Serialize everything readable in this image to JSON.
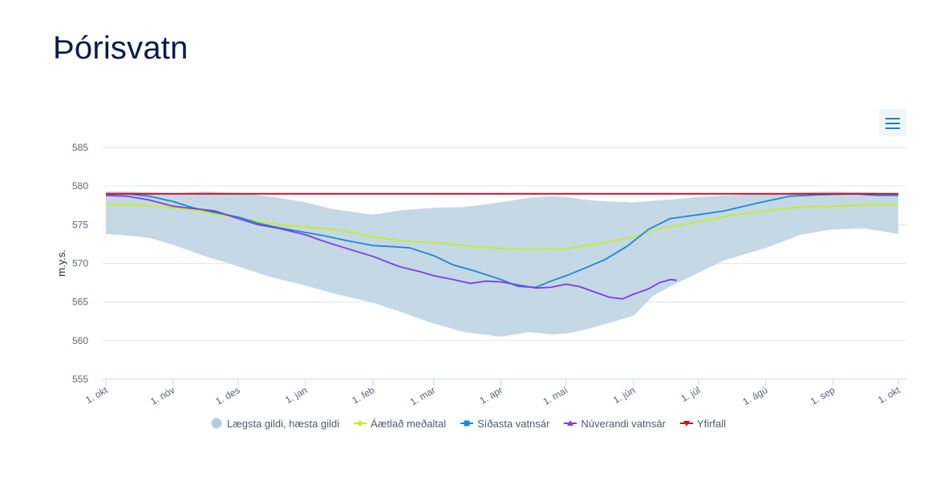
{
  "page": {
    "title": "Þórisvatn"
  },
  "menu": {
    "icon": "hamburger-menu-icon"
  },
  "chart_data": {
    "type": "line",
    "ylabel": "m.y.s.",
    "ylim": [
      555,
      585
    ],
    "yticks": [
      "555",
      "560",
      "565",
      "570",
      "575",
      "580",
      "585"
    ],
    "x_domain": [
      0,
      365
    ],
    "xticks": [
      {
        "label": "1. okt",
        "day": 0
      },
      {
        "label": "1. nóv",
        "day": 31
      },
      {
        "label": "1. des",
        "day": 61
      },
      {
        "label": "1. jan",
        "day": 92
      },
      {
        "label": "1. feb",
        "day": 123
      },
      {
        "label": "1. mar",
        "day": 151
      },
      {
        "label": "1. apr",
        "day": 182
      },
      {
        "label": "1. maí",
        "day": 212
      },
      {
        "label": "1. jún",
        "day": 243
      },
      {
        "label": "1. júl",
        "day": 273
      },
      {
        "label": "1. ágú",
        "day": 304
      },
      {
        "label": "1. sep",
        "day": 335
      },
      {
        "label": "1. okt",
        "day": 365
      }
    ],
    "grid": true,
    "legend_position": "bottom-center",
    "series": [
      {
        "name": "Lægsta gildi, hæsta gildi",
        "kind": "range",
        "color": "#c2d6e4",
        "x": [
          0,
          10,
          20,
          31,
          45,
          61,
          75,
          92,
          105,
          123,
          137,
          151,
          165,
          182,
          195,
          205,
          212,
          222,
          232,
          243,
          252,
          262,
          273,
          285,
          304,
          320,
          335,
          350,
          365
        ],
        "low": [
          573.8,
          573.6,
          573.3,
          572.4,
          571.0,
          569.6,
          568.3,
          567.1,
          566.1,
          564.9,
          563.6,
          562.2,
          561.1,
          560.5,
          561.1,
          560.8,
          560.9,
          561.5,
          562.3,
          563.2,
          565.8,
          567.3,
          568.8,
          570.4,
          572.0,
          573.7,
          574.4,
          574.5,
          573.8
        ],
        "high": [
          579.3,
          579.3,
          579.2,
          579.0,
          579.3,
          579.1,
          578.7,
          577.9,
          577.0,
          576.3,
          576.9,
          577.2,
          577.3,
          577.9,
          578.5,
          578.7,
          578.6,
          578.2,
          578.0,
          577.9,
          578.1,
          578.3,
          578.6,
          578.8,
          579.0,
          579.2,
          579.3,
          579.2,
          579.1
        ]
      },
      {
        "name": "Áætlað meðaltal",
        "kind": "line",
        "color": "#c3f020",
        "x": [
          0,
          15,
          31,
          45,
          61,
          80,
          92,
          110,
          123,
          140,
          151,
          165,
          182,
          195,
          212,
          230,
          243,
          255,
          273,
          290,
          304,
          320,
          335,
          350,
          365
        ],
        "y": [
          577.6,
          577.6,
          577.2,
          576.7,
          575.9,
          575.0,
          574.7,
          574.2,
          573.4,
          572.8,
          572.7,
          572.3,
          571.9,
          571.8,
          571.9,
          572.7,
          573.4,
          574.5,
          575.4,
          576.3,
          576.8,
          577.3,
          577.4,
          577.6,
          577.6
        ]
      },
      {
        "name": "Síðasta vatnsár",
        "kind": "line",
        "color": "#1e86d9",
        "x": [
          0,
          10,
          20,
          31,
          40,
          50,
          61,
          70,
          80,
          92,
          100,
          110,
          123,
          130,
          140,
          151,
          160,
          170,
          182,
          190,
          198,
          205,
          212,
          220,
          230,
          240,
          250,
          260,
          273,
          285,
          300,
          315,
          330,
          345,
          355,
          365
        ],
        "y": [
          579.0,
          579.0,
          578.7,
          578.0,
          577.2,
          576.6,
          576.0,
          575.2,
          574.6,
          574.0,
          573.6,
          573.0,
          572.3,
          572.2,
          572.0,
          571.0,
          569.8,
          569.0,
          567.9,
          567.0,
          566.9,
          567.7,
          568.4,
          569.3,
          570.5,
          572.2,
          574.4,
          575.8,
          576.3,
          576.8,
          577.8,
          578.7,
          578.9,
          579.0,
          578.8,
          578.8
        ]
      },
      {
        "name": "Núverandi vatnsár",
        "kind": "line",
        "color": "#7b3fe4",
        "x": [
          0,
          10,
          20,
          31,
          40,
          50,
          61,
          70,
          80,
          92,
          100,
          110,
          123,
          135,
          145,
          151,
          160,
          168,
          175,
          182,
          190,
          198,
          205,
          212,
          218,
          225,
          232,
          238,
          243,
          250,
          255,
          260,
          263
        ],
        "y": [
          578.8,
          578.7,
          578.2,
          577.4,
          577.1,
          576.8,
          575.8,
          575.0,
          574.5,
          573.7,
          572.9,
          572.0,
          570.9,
          569.6,
          568.9,
          568.4,
          567.9,
          567.4,
          567.7,
          567.6,
          567.2,
          566.8,
          566.9,
          567.3,
          567.0,
          566.3,
          565.6,
          565.4,
          566.0,
          566.7,
          567.5,
          567.9,
          567.8
        ]
      },
      {
        "name": "Yfirfall",
        "kind": "line",
        "color": "#c8102e",
        "x": [
          0,
          365
        ],
        "y": [
          579.0,
          579.0
        ]
      }
    ]
  },
  "legend": {
    "items": [
      {
        "label": "Lægsta gildi, hæsta gildi",
        "marker": "circle",
        "color": "#b4cddd"
      },
      {
        "label": "Áætlað meðaltal",
        "marker": "diamond",
        "color": "#c3f020"
      },
      {
        "label": "Síðasta vatnsár",
        "marker": "square",
        "color": "#1e86d9"
      },
      {
        "label": "Núverandi vatnsár",
        "marker": "triangle",
        "color": "#7b3fe4"
      },
      {
        "label": "Yfirfall",
        "marker": "triangle-down",
        "color": "#c8102e"
      }
    ]
  }
}
